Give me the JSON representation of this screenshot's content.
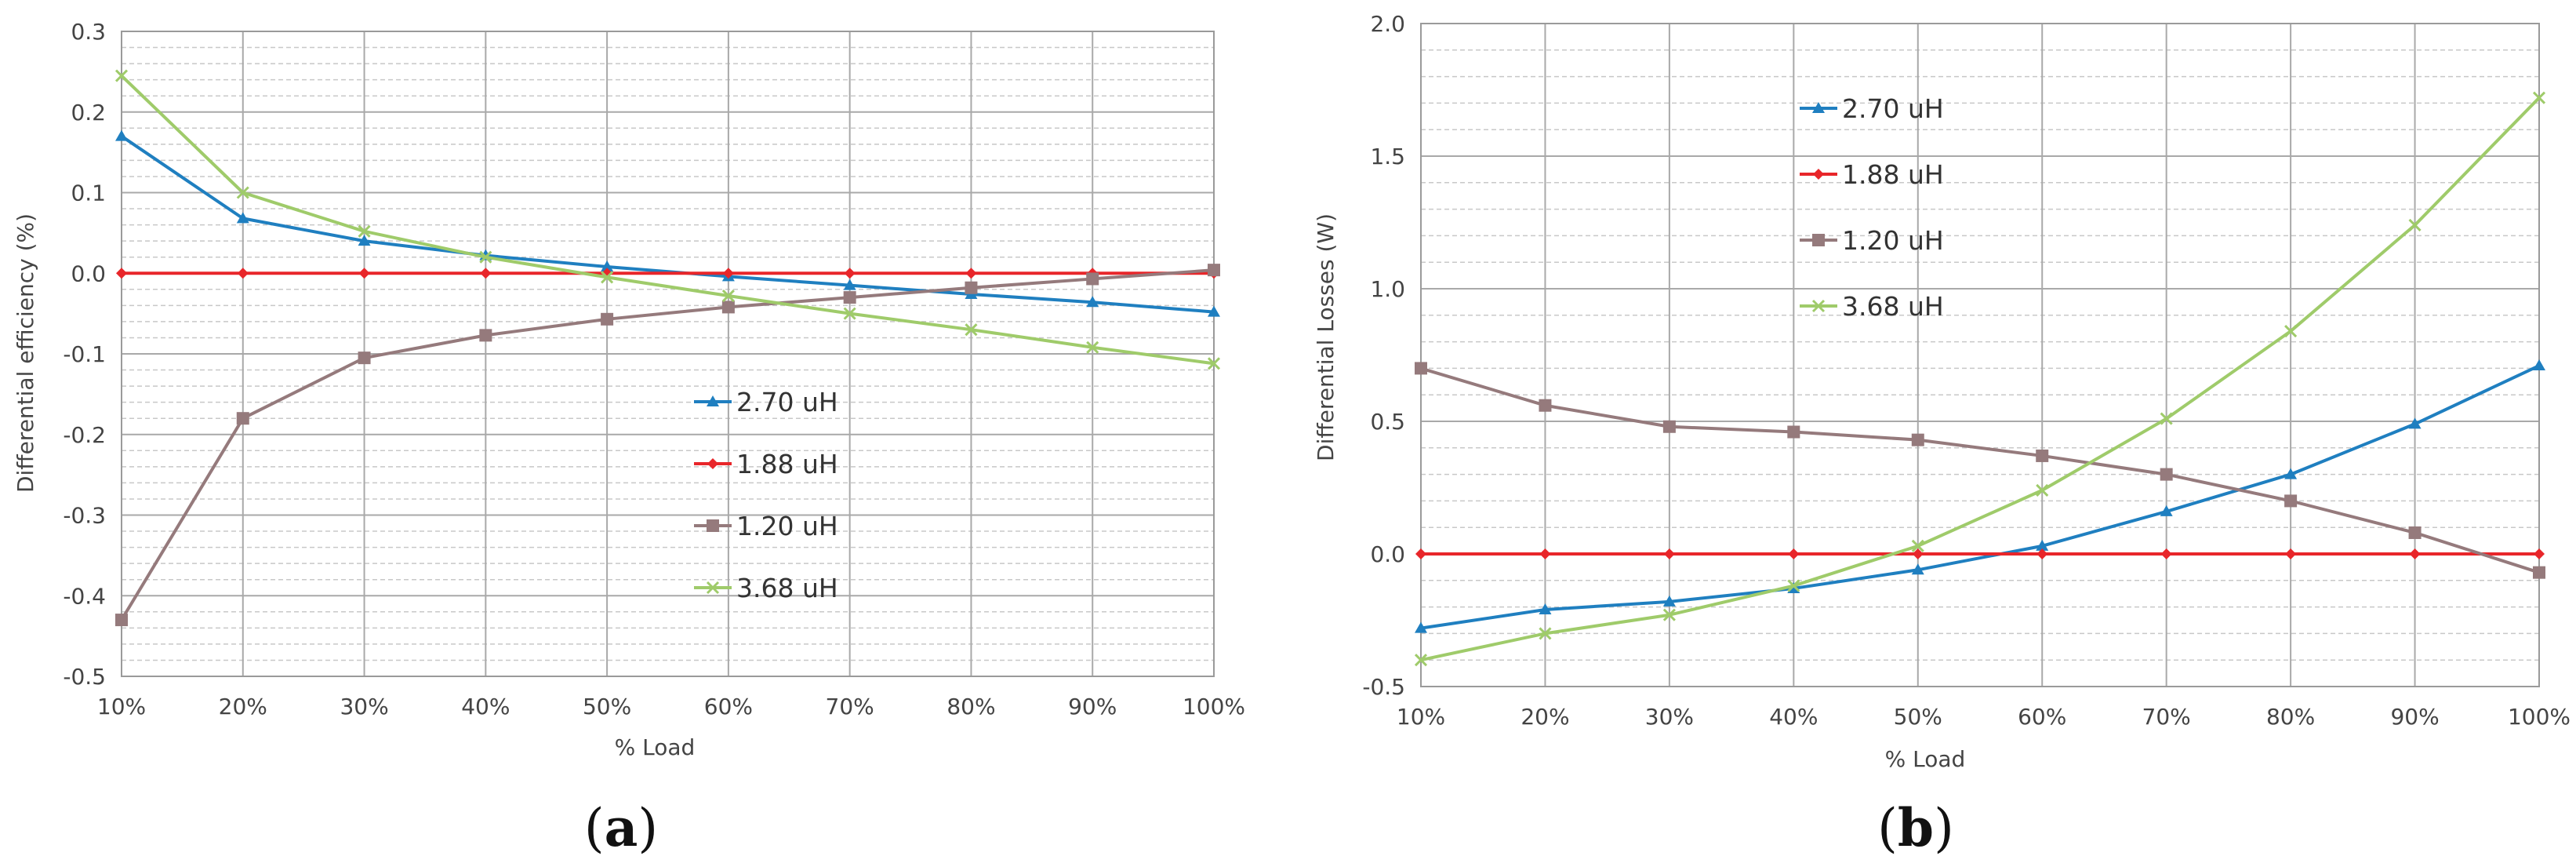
{
  "chart_data": [
    {
      "type": "line",
      "caption": "(a)",
      "xlabel": "% Load",
      "ylabel": "Differential efficiency (%)",
      "categories": [
        "10%",
        "20%",
        "30%",
        "40%",
        "50%",
        "60%",
        "70%",
        "80%",
        "90%",
        "100%"
      ],
      "ylim": [
        -0.5,
        0.3
      ],
      "yticks": [
        "0.3",
        "0.2",
        "0.1",
        "0.0",
        "-0.1",
        "-0.2",
        "-0.3",
        "-0.4",
        "-0.5"
      ],
      "series": [
        {
          "name": "2.70 uH",
          "color": "#1f7fc0",
          "marker": "triangle",
          "values": [
            0.17,
            0.068,
            0.04,
            0.022,
            0.008,
            -0.004,
            -0.015,
            -0.026,
            -0.036,
            -0.048
          ]
        },
        {
          "name": "1.88 uH",
          "color": "#e8262a",
          "marker": "diamond",
          "values": [
            0,
            0,
            0,
            0,
            0,
            0,
            0,
            0,
            0,
            0
          ]
        },
        {
          "name": "1.20 uH",
          "color": "#957a7c",
          "marker": "square",
          "values": [
            -0.43,
            -0.18,
            -0.105,
            -0.077,
            -0.057,
            -0.042,
            -0.03,
            -0.018,
            -0.007,
            0.004
          ]
        },
        {
          "name": "3.68 uH",
          "color": "#9fcb6a",
          "marker": "cross",
          "values": [
            0.245,
            0.1,
            0.052,
            0.02,
            -0.005,
            -0.028,
            -0.05,
            -0.07,
            -0.092,
            -0.112
          ]
        }
      ]
    },
    {
      "type": "line",
      "caption": "(b)",
      "xlabel": "% Load",
      "ylabel": "Differential Losses (W)",
      "categories": [
        "10%",
        "20%",
        "30%",
        "40%",
        "50%",
        "60%",
        "70%",
        "80%",
        "90%",
        "100%"
      ],
      "ylim": [
        -0.5,
        2.0
      ],
      "yticks": [
        "2.0",
        "1.5",
        "1.0",
        "0.5",
        "0.0",
        "-0.5"
      ],
      "series": [
        {
          "name": "2.70 uH",
          "color": "#1f7fc0",
          "marker": "triangle",
          "values": [
            -0.28,
            -0.21,
            -0.18,
            -0.13,
            -0.06,
            0.03,
            0.16,
            0.3,
            0.49,
            0.71
          ]
        },
        {
          "name": "1.88 uH",
          "color": "#e8262a",
          "marker": "diamond",
          "values": [
            0,
            0,
            0,
            0,
            0,
            0,
            0,
            0,
            0,
            0
          ]
        },
        {
          "name": "1.20 uH",
          "color": "#957a7c",
          "marker": "square",
          "values": [
            0.7,
            0.56,
            0.48,
            0.46,
            0.43,
            0.37,
            0.3,
            0.2,
            0.08,
            -0.07
          ]
        },
        {
          "name": "3.68 uH",
          "color": "#9fcb6a",
          "marker": "cross",
          "values": [
            -0.4,
            -0.3,
            -0.23,
            -0.12,
            0.03,
            0.24,
            0.51,
            0.84,
            1.24,
            1.72
          ]
        }
      ]
    }
  ]
}
